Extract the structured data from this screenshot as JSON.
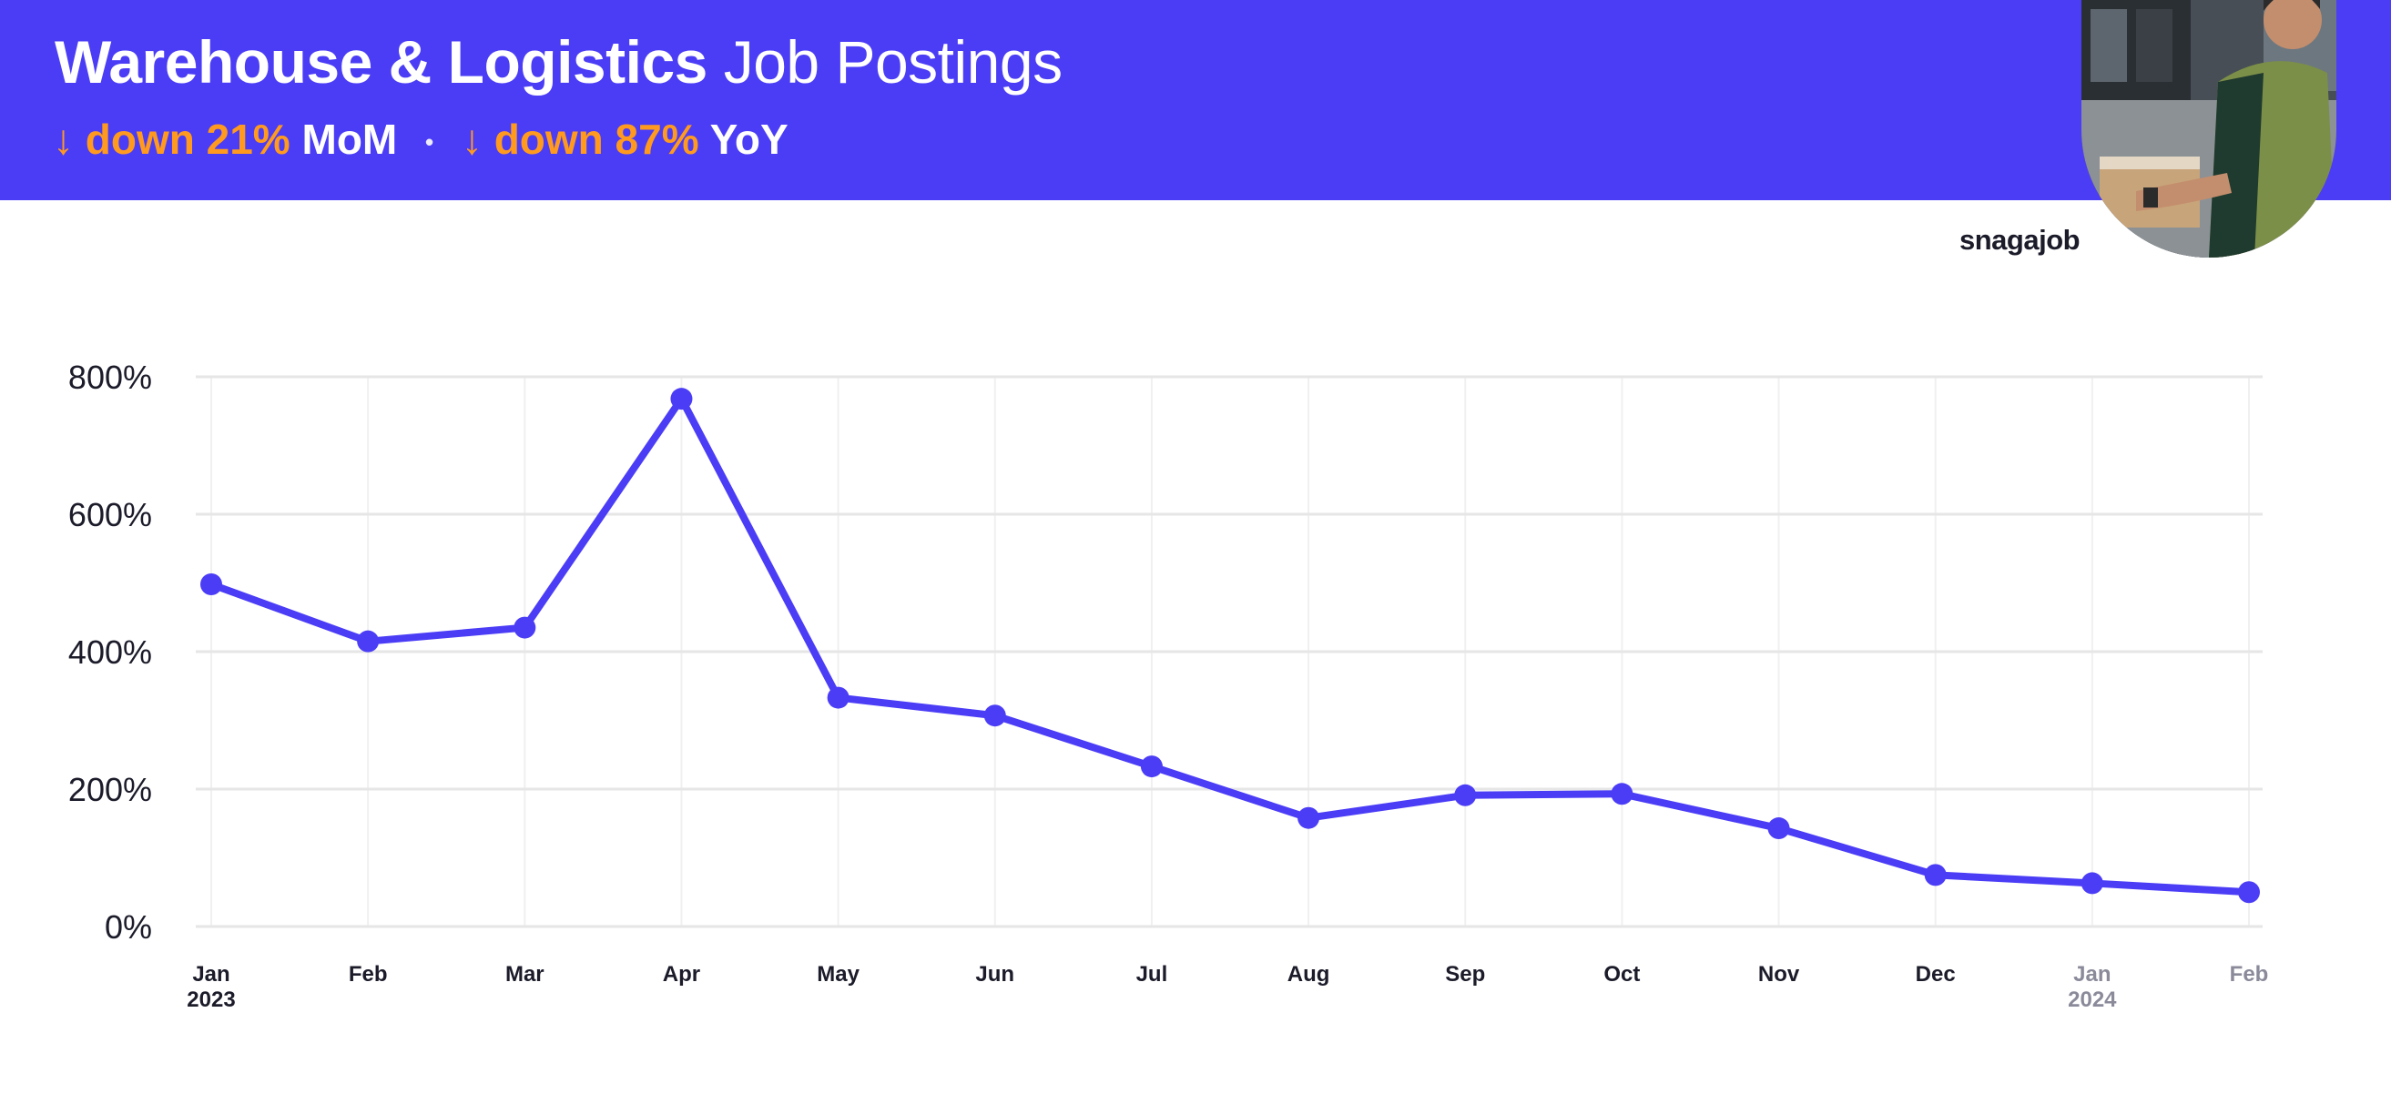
{
  "header": {
    "title_bold": "Warehouse & Logistics",
    "title_light": "Job Postings",
    "mom": {
      "arrow": "↓",
      "value": "down 21%",
      "label": "MoM"
    },
    "separator": "•",
    "yoy": {
      "arrow": "↓",
      "value": "down 87%",
      "label": "YoY"
    }
  },
  "brand": "snagajob",
  "colors": {
    "header_bg": "#4b3df6",
    "line": "#4b3df6",
    "accent": "#ff9a1f",
    "grid": "#e6e6e6"
  },
  "chart_data": {
    "type": "line",
    "title": "",
    "xlabel": "",
    "ylabel": "",
    "ylim": [
      0,
      800
    ],
    "yticks": [
      0,
      200,
      400,
      600,
      800
    ],
    "ytick_labels": [
      "0%",
      "200%",
      "400%",
      "600%",
      "800%"
    ],
    "grid": true,
    "x": [
      "2023-01",
      "2023-02",
      "2023-03",
      "2023-04",
      "2023-05",
      "2023-06",
      "2023-07",
      "2023-08",
      "2023-09",
      "2023-10",
      "2023-11",
      "2023-12",
      "2024-01",
      "2024-02"
    ],
    "tick_labels": [
      {
        "month": "Jan",
        "year": "2023"
      },
      {
        "month": "Feb",
        "year": ""
      },
      {
        "month": "Mar",
        "year": ""
      },
      {
        "month": "Apr",
        "year": ""
      },
      {
        "month": "May",
        "year": ""
      },
      {
        "month": "Jun",
        "year": ""
      },
      {
        "month": "Jul",
        "year": ""
      },
      {
        "month": "Aug",
        "year": ""
      },
      {
        "month": "Sep",
        "year": ""
      },
      {
        "month": "Oct",
        "year": ""
      },
      {
        "month": "Nov",
        "year": ""
      },
      {
        "month": "Dec",
        "year": ""
      },
      {
        "month": "Jan",
        "year": "2024"
      },
      {
        "month": "Feb",
        "year": ""
      }
    ],
    "faded_from_index": 12,
    "series": [
      {
        "values": [
          498,
          415,
          435,
          768,
          333,
          307,
          233,
          158,
          191,
          193,
          143,
          75,
          63,
          50
        ]
      }
    ]
  }
}
